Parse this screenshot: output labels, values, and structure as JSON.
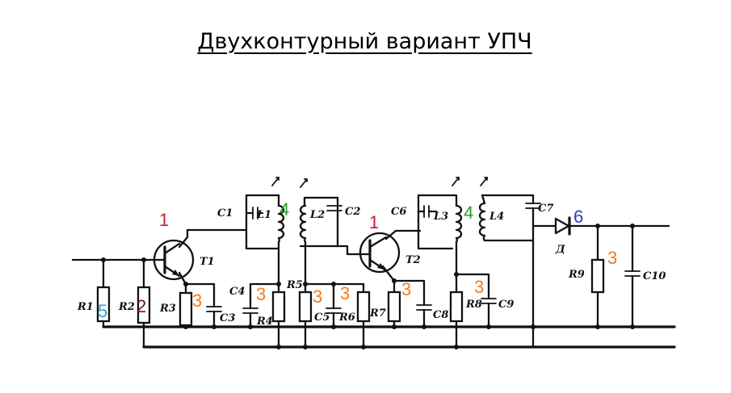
{
  "title": "Двухконтурный вариант УПЧ",
  "labels": {
    "R1": "R1",
    "R2": "R2",
    "R3": "R3",
    "R4": "R4",
    "R5": "R5",
    "R6": "R6",
    "R7": "R7",
    "R8": "R8",
    "R9": "R9",
    "C1": "C1",
    "C2": "C2",
    "C3": "C3",
    "C4": "C4",
    "C5": "C5",
    "C6": "C6",
    "C7": "C7",
    "C8": "C8",
    "C9": "C9",
    "C10": "C10",
    "L1": "L1",
    "L2": "L2",
    "L3": "L3",
    "L4": "L4",
    "T1": "T1",
    "T2": "T2",
    "D": "Д"
  },
  "markers": [
    {
      "text": "1",
      "color": "#d0192b"
    },
    {
      "text": "1",
      "color": "#d0192b"
    },
    {
      "text": "4",
      "color": "#2ca02c"
    },
    {
      "text": "4",
      "color": "#2ca02c"
    },
    {
      "text": "5",
      "color": "#2aa7e0"
    },
    {
      "text": "2",
      "color": "#7a1020"
    },
    {
      "text": "3",
      "color": "#f07a20"
    },
    {
      "text": "3",
      "color": "#f07a20"
    },
    {
      "text": "3",
      "color": "#f07a20"
    },
    {
      "text": "3",
      "color": "#f07a20"
    },
    {
      "text": "3",
      "color": "#f07a20"
    },
    {
      "text": "3",
      "color": "#f07a20"
    },
    {
      "text": "3",
      "color": "#f07a20"
    },
    {
      "text": "6",
      "color": "#2a3fc0"
    }
  ]
}
